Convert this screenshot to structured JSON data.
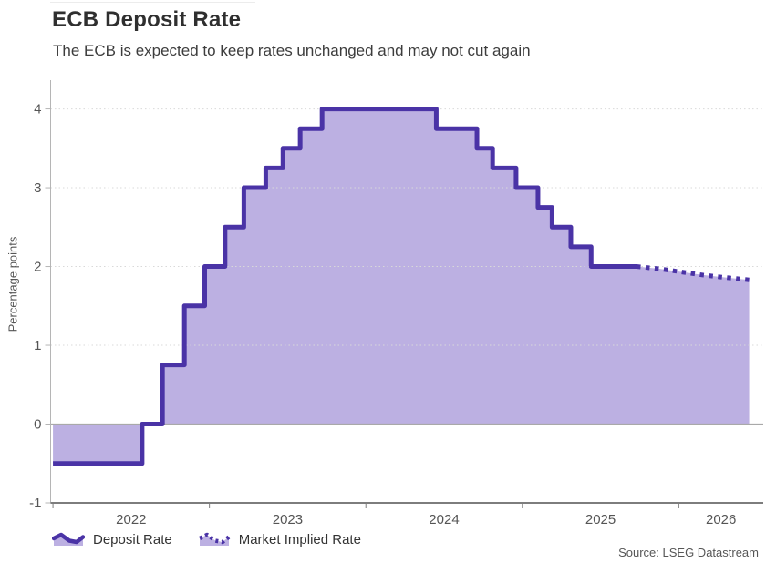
{
  "header": {
    "title": "ECB Deposit Rate",
    "subtitle": "The ECB is expected to keep rates unchanged and may not cut again"
  },
  "source": "Source: LSEG Datastream",
  "legend": [
    {
      "label": "Deposit Rate",
      "style": "solid"
    },
    {
      "label": "Market Implied Rate",
      "style": "dotted"
    }
  ],
  "colors": {
    "line": "#4a33a6",
    "fill": "#bcb0e2",
    "grid": "#d9d9d9",
    "zero": "#a9a9a9",
    "axisx": "#7d7d7d",
    "axisy": "#b5b5b5"
  },
  "chart_data": {
    "type": "area",
    "title": "ECB Deposit Rate",
    "subtitle": "The ECB is expected to keep rates unchanged and may not cut again",
    "xlabel": "",
    "ylabel": "Percentage points",
    "xlim": [
      2021.985,
      2026.54
    ],
    "ylim": [
      -1,
      4.365
    ],
    "x_ticks": [
      2022,
      2023,
      2024,
      2025,
      2026
    ],
    "y_ticks": [
      -1,
      0,
      1,
      2,
      3,
      4
    ],
    "grid": "dotted horizontal at 1,2,3,4; solid gray at 0",
    "legend_position": "bottom-left",
    "series": [
      {
        "name": "Deposit Rate",
        "style": "solid-step",
        "points": [
          [
            2022.0,
            -0.5
          ],
          [
            2022.57,
            0.0
          ],
          [
            2022.7,
            0.75
          ],
          [
            2022.84,
            1.5
          ],
          [
            2022.97,
            2.0
          ],
          [
            2023.1,
            2.5
          ],
          [
            2023.22,
            3.0
          ],
          [
            2023.36,
            3.25
          ],
          [
            2023.47,
            3.5
          ],
          [
            2023.58,
            3.75
          ],
          [
            2023.72,
            4.0
          ],
          [
            2024.45,
            3.75
          ],
          [
            2024.71,
            3.5
          ],
          [
            2024.81,
            3.25
          ],
          [
            2024.96,
            3.0
          ],
          [
            2025.1,
            2.75
          ],
          [
            2025.19,
            2.5
          ],
          [
            2025.31,
            2.25
          ],
          [
            2025.44,
            2.0
          ]
        ],
        "end_x": 2025.73
      },
      {
        "name": "Market Implied Rate",
        "style": "dotted-line",
        "points": [
          [
            2025.73,
            2.0
          ],
          [
            2025.88,
            1.97
          ],
          [
            2026.02,
            1.93
          ],
          [
            2026.16,
            1.89
          ],
          [
            2026.3,
            1.86
          ],
          [
            2026.45,
            1.83
          ]
        ]
      }
    ]
  }
}
